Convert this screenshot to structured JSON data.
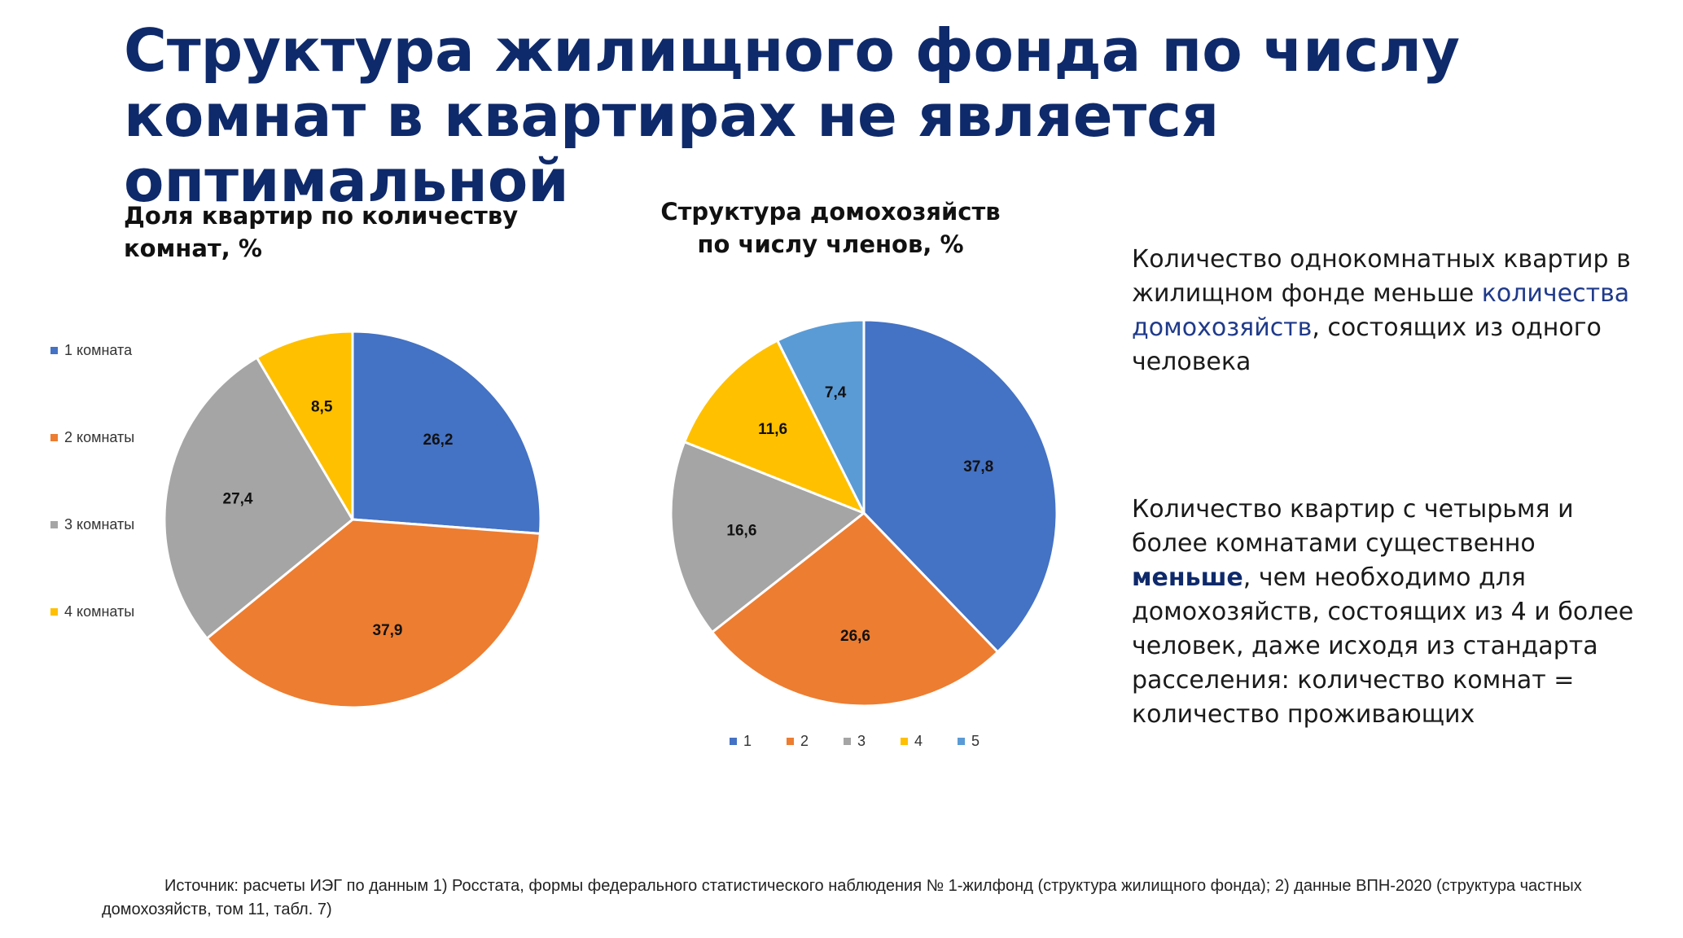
{
  "title": "Структура жилищного фонда по числу комнат в квартирах не является оптимальной",
  "chart_data": [
    {
      "type": "pie",
      "title": "Доля квартир по количеству комнат, %",
      "categories": [
        "1 комната",
        "2 комнаты",
        "3 комнаты",
        "4 комнаты"
      ],
      "values": [
        26.2,
        37.9,
        27.4,
        8.5
      ],
      "labels": [
        "26,2",
        "37,9",
        "27,4",
        "8,5"
      ],
      "colors": [
        "#4472c4",
        "#ed7d31",
        "#a5a5a5",
        "#ffc000"
      ],
      "legend_position": "left"
    },
    {
      "type": "pie",
      "title": "Структура домохозяйств по числу членов, %",
      "categories": [
        "1",
        "2",
        "3",
        "4",
        "5"
      ],
      "values": [
        37.8,
        26.6,
        16.6,
        11.6,
        7.4
      ],
      "labels": [
        "37,8",
        "26,6",
        "16,6",
        "11,6",
        "7,4"
      ],
      "colors": [
        "#4472c4",
        "#ed7d31",
        "#a5a5a5",
        "#ffc000",
        "#5b9bd5"
      ],
      "legend_position": "bottom"
    }
  ],
  "text_block_1": {
    "before": "Количество однокомнатных квартир в жилищном фонде меньше ",
    "highlight": "количества домохозяйств",
    "after": ", состоящих из одного человека"
  },
  "text_block_2": {
    "before": "Количество квартир с четырьмя и более комнатами существенно ",
    "highlight": "меньше",
    "after": ", чем необходимо для домохозяйств, состоящих из 4 и более человек, даже исходя из стандарта расселения: количество комнат = количество проживающих"
  },
  "source": "Источник: расчеты ИЭГ по данным 1) Росстата, формы федерального статистического наблюдения № 1-жилфонд (структура жилищного фонда); 2) данные ВПН-2020 (структура частных домохозяйств, том 11, табл. 7)"
}
